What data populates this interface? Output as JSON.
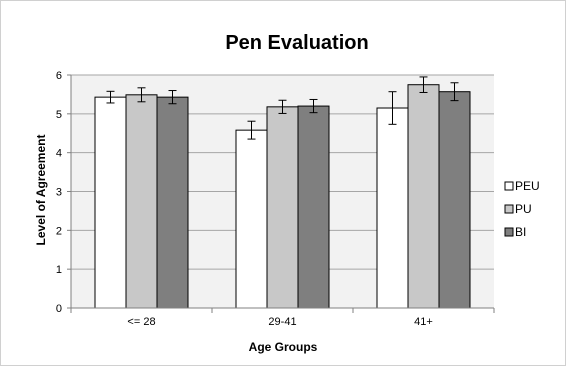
{
  "chart_data": {
    "type": "bar",
    "title": "Pen Evaluation",
    "xlabel": "Age Groups",
    "ylabel": "Level of Agreement",
    "ylim": [
      0,
      6
    ],
    "yticks": [
      "0",
      "1",
      "2",
      "3",
      "4",
      "5",
      "6"
    ],
    "categories": [
      "<= 28",
      "29-41",
      "41+"
    ],
    "grid": true,
    "legend_position": "right",
    "series": [
      {
        "name": "PEU",
        "color": "#ffffff",
        "values": [
          5.43,
          4.58,
          5.15
        ],
        "errors": [
          0.15,
          0.23,
          0.42
        ]
      },
      {
        "name": "PU",
        "color": "#c8c8c8",
        "values": [
          5.49,
          5.18,
          5.75
        ],
        "errors": [
          0.18,
          0.17,
          0.2
        ]
      },
      {
        "name": "BI",
        "color": "#7f7f7f",
        "values": [
          5.43,
          5.2,
          5.57
        ],
        "errors": [
          0.17,
          0.17,
          0.23
        ]
      }
    ]
  }
}
